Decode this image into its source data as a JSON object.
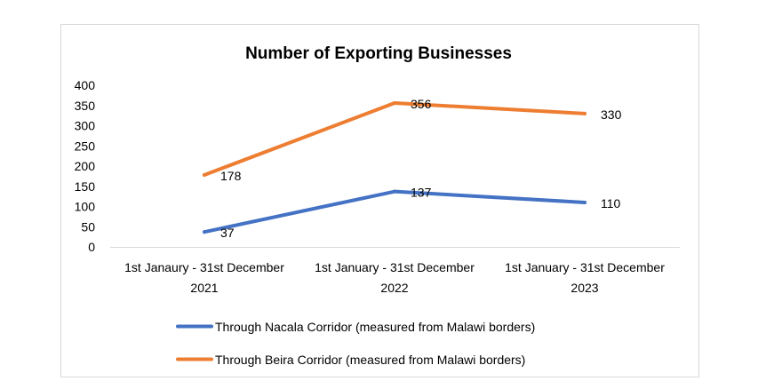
{
  "chart_data": {
    "type": "line",
    "title": "Number of Exporting Businesses",
    "categories": [
      [
        "1st Janaury - 31st December",
        "2021"
      ],
      [
        "1st January - 31st December",
        "2022"
      ],
      [
        "1st January - 31st December",
        "2023"
      ]
    ],
    "series": [
      {
        "name": "Through Nacala Corridor (measured from Malawi borders)",
        "values": [
          37,
          137,
          110
        ],
        "color": "#4472c4"
      },
      {
        "name": "Through Beira Corridor (measured from Malawi borders)",
        "values": [
          178,
          356,
          330
        ],
        "color": "#ed7d31"
      }
    ],
    "yticks": [
      "0",
      "50",
      "100",
      "150",
      "200",
      "250",
      "300",
      "350",
      "400"
    ],
    "ylim": [
      0,
      400
    ],
    "grid": false,
    "legend": "bottom"
  }
}
